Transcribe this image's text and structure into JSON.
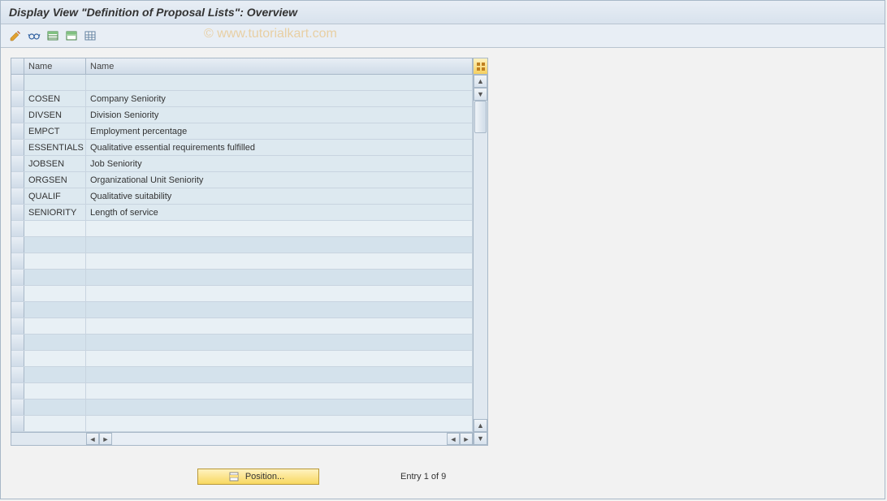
{
  "title": "Display View \"Definition of Proposal Lists\": Overview",
  "watermark": "© www.tutorialkart.com",
  "toolbar": {
    "icons": [
      "edit",
      "glasses",
      "table-select",
      "table-first",
      "table-settings"
    ]
  },
  "table": {
    "columns": [
      "Name",
      "Name"
    ],
    "rows": [
      {
        "code": "",
        "desc": ""
      },
      {
        "code": "COSEN",
        "desc": "Company Seniority"
      },
      {
        "code": "DIVSEN",
        "desc": "Division Seniority"
      },
      {
        "code": "EMPCT",
        "desc": "Employment percentage"
      },
      {
        "code": "ESSENTIALS",
        "desc": "Qualitative essential requirements fulfilled"
      },
      {
        "code": "JOBSEN",
        "desc": "Job Seniority"
      },
      {
        "code": "ORGSEN",
        "desc": "Organizational Unit Seniority"
      },
      {
        "code": "QUALIF",
        "desc": "Qualitative suitability"
      },
      {
        "code": "SENIORITY",
        "desc": "Length of service"
      }
    ],
    "empty_rows": 13,
    "colors": {
      "header_bg_top": "#e8eef5",
      "header_bg_bottom": "#d0dce8",
      "row_bg": "#dde9f0",
      "row_alt_bg": "#d4e2ec",
      "border": "#a8b8c8"
    }
  },
  "footer": {
    "position_label": "Position...",
    "entry_text": "Entry 1 of 9"
  }
}
